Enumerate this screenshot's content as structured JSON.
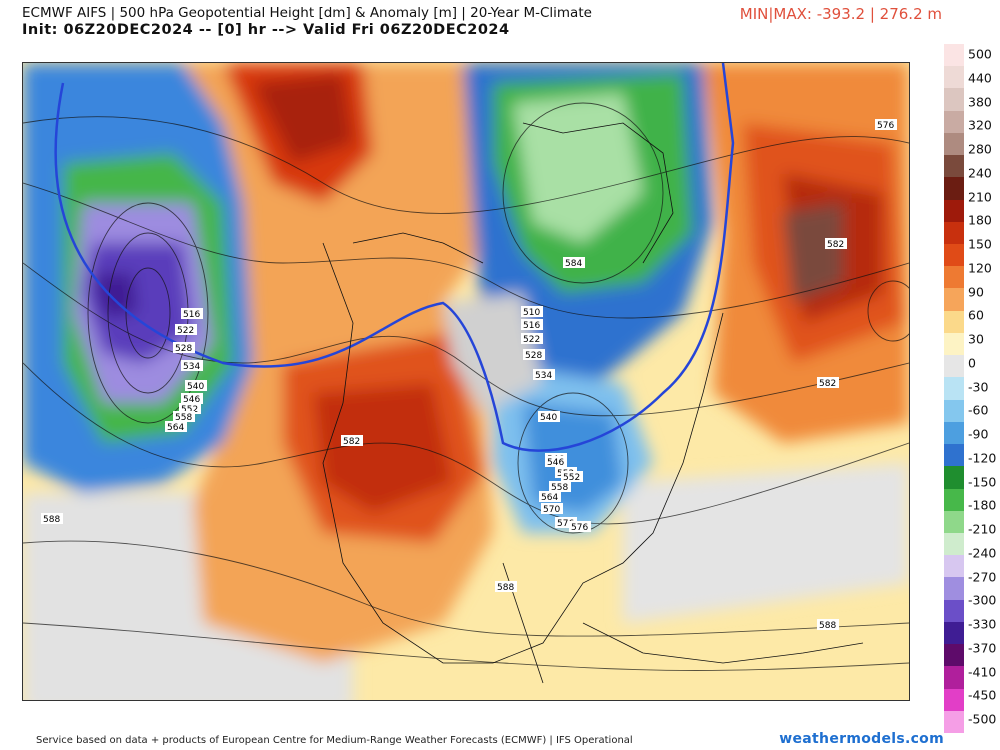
{
  "header": {
    "title": "ECMWF AIFS | 500 hPa Geopotential Height [dm] & Anomaly [m] | 20-Year M-Climate",
    "subtitle": "Init: 06Z20DEC2024 -- [0] hr --> Valid Fri 06Z20DEC2024",
    "minmax": "MIN|MAX: -393.2 | 276.2 m"
  },
  "colorbar": {
    "labels": [
      "500",
      "440",
      "380",
      "320",
      "280",
      "240",
      "210",
      "180",
      "150",
      "120",
      "90",
      "60",
      "30",
      "0",
      "-30",
      "-60",
      "-90",
      "-120",
      "-150",
      "-180",
      "-210",
      "-240",
      "-270",
      "-300",
      "-330",
      "-370",
      "-410",
      "-450",
      "-500"
    ],
    "colors": [
      "#fbe4e4",
      "#eedad6",
      "#dcc6c0",
      "#c9aba3",
      "#ae8b80",
      "#7a4a3c",
      "#6b1d12",
      "#9e1a0b",
      "#c8300e",
      "#e04b17",
      "#ee7a32",
      "#f6a55a",
      "#fbd98a",
      "#fdf3c4",
      "#e6e6e6",
      "#b9e3f4",
      "#84c7ee",
      "#4d9fe0",
      "#2f72cf",
      "#1f8e2f",
      "#47b84a",
      "#8fd88a",
      "#cfeccd",
      "#d7c7f0",
      "#9f8ee0",
      "#6b4fc8",
      "#3f1d94",
      "#5e0b6a",
      "#b01f9c",
      "#e23ec7",
      "#f59ee6"
    ]
  },
  "map": {
    "contour_labels": [
      "576",
      "582",
      "584",
      "510",
      "516",
      "522",
      "528",
      "534",
      "540",
      "546",
      "552",
      "558",
      "564",
      "570",
      "576",
      "588",
      "588",
      "588",
      "582",
      "582",
      "516",
      "522",
      "528",
      "534",
      "540",
      "546",
      "552",
      "558",
      "564",
      "546",
      "552",
      "576"
    ]
  },
  "footer": {
    "credit": "Service based on data + products of European Centre for Medium-Range Weather Forecasts (ECMWF) | IFS Operational",
    "brand": "weathermodels.com"
  }
}
